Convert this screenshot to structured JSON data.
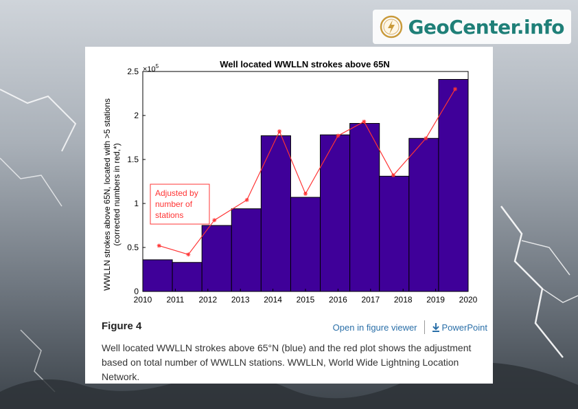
{
  "brand": {
    "name": "GeoCenter.info",
    "logo_icon": "lightning-circle-icon",
    "color": "#1f7f78"
  },
  "figure": {
    "label": "Figure 4",
    "viewer_link": "Open in figure viewer",
    "powerpoint_link": "PowerPoint",
    "download_icon": "download-icon",
    "caption": "Well located WWLLN strokes above 65°N (blue) and the red plot shows the adjustment based on total number of WWLLN stations. WWLLN, World Wide Lightning Location Network."
  },
  "chart_data": {
    "type": "bar",
    "title": "Well located WWLLN strokes above 65N",
    "ylabel_line1": "WWLLN strokes above 65N, located with >5 stations",
    "ylabel_line2": "(corrected numbers in red,*)",
    "y_exponent": "×10",
    "y_exponent_power": "5",
    "xlim": [
      2010,
      2020
    ],
    "ylim": [
      0,
      2.5
    ],
    "x_ticks": [
      "2010",
      "2011",
      "2012",
      "2013",
      "2014",
      "2015",
      "2016",
      "2017",
      "2018",
      "2019",
      "2020"
    ],
    "y_ticks": [
      "0",
      "0.5",
      "1",
      "1.5",
      "2",
      "2.5"
    ],
    "bar_color": "#3f0099",
    "line_color": "#ff3333",
    "series": [
      {
        "kind": "bar",
        "values": [
          0.36,
          0.33,
          0.75,
          0.94,
          1.77,
          1.07,
          1.78,
          1.91,
          1.31,
          1.74,
          2.41
        ]
      },
      {
        "kind": "line",
        "x": [
          2010.5,
          2011.4,
          2012.2,
          2013.2,
          2014.2,
          2015.0,
          2016.0,
          2016.8,
          2017.7,
          2018.7,
          2019.6
        ],
        "values": [
          0.52,
          0.42,
          0.81,
          1.04,
          1.82,
          1.11,
          1.77,
          1.93,
          1.32,
          1.74,
          2.3
        ]
      }
    ],
    "annotation": "Adjusted by\nnumber of\nstations"
  }
}
